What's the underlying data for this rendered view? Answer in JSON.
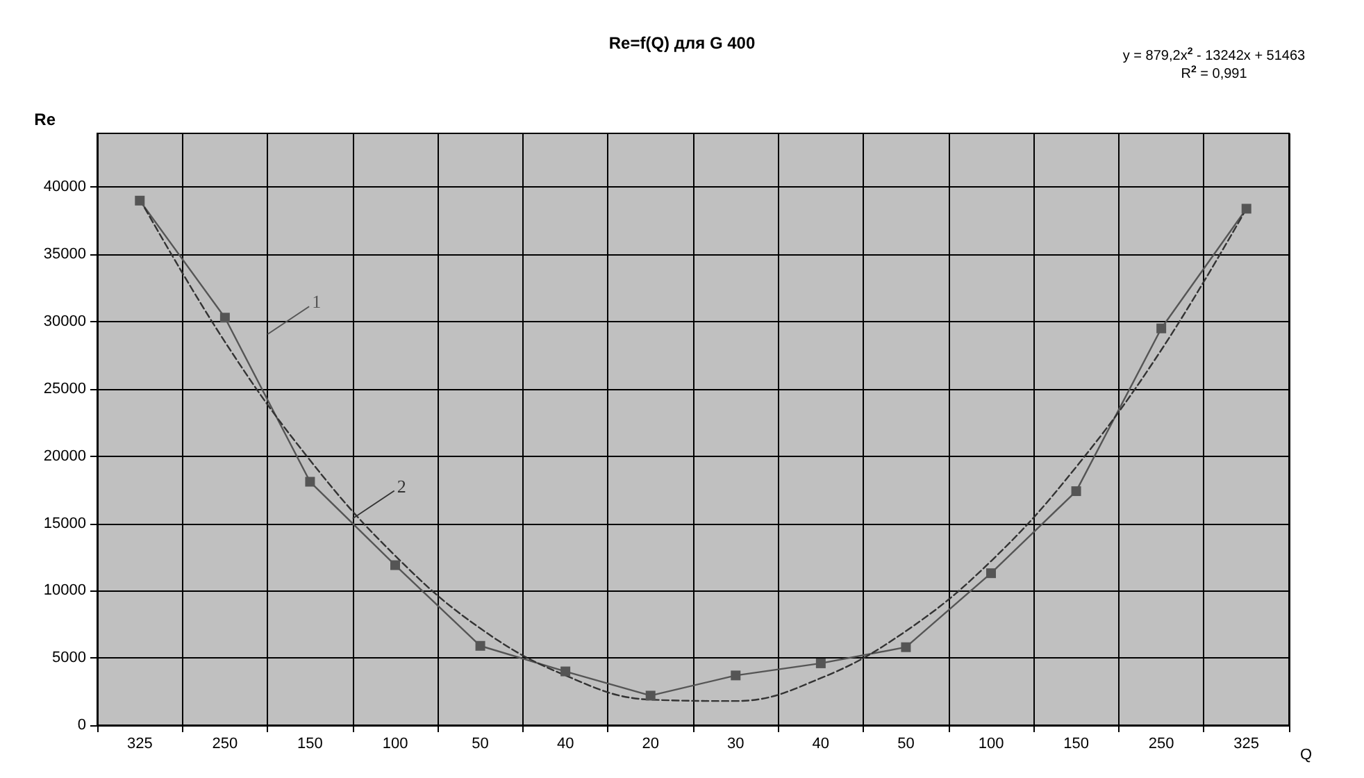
{
  "chart_data": {
    "type": "line",
    "title": "Re=f(Q) для G 400",
    "xlabel": "Q",
    "ylabel": "Re",
    "categories": [
      "325",
      "250",
      "150",
      "100",
      "50",
      "40",
      "20",
      "30",
      "40",
      "50",
      "100",
      "150",
      "250",
      "325"
    ],
    "series": [
      {
        "name": "1",
        "color": "#555555",
        "marker": "square",
        "line_style": "solid",
        "values": [
          39000,
          30300,
          18100,
          11900,
          5900,
          4000,
          2200,
          3700,
          4600,
          5800,
          11300,
          17400,
          29500,
          38400
        ]
      },
      {
        "name": "2",
        "color": "#333333",
        "marker": "none",
        "line_style": "dashed",
        "values": [
          39100,
          28500,
          19700,
          12600,
          7200,
          3700,
          1900,
          1800,
          3500,
          7000,
          12200,
          19200,
          27900,
          38400
        ]
      }
    ],
    "annotations": [
      "y = 879,2x$^{2}$ - 13242x + 51463",
      "R$^{2}$ = 0,991"
    ],
    "ylim": [
      0,
      44000
    ],
    "yticks": [
      0,
      5000,
      10000,
      15000,
      20000,
      25000,
      30000,
      35000,
      40000
    ],
    "grid": true,
    "legend": false
  }
}
